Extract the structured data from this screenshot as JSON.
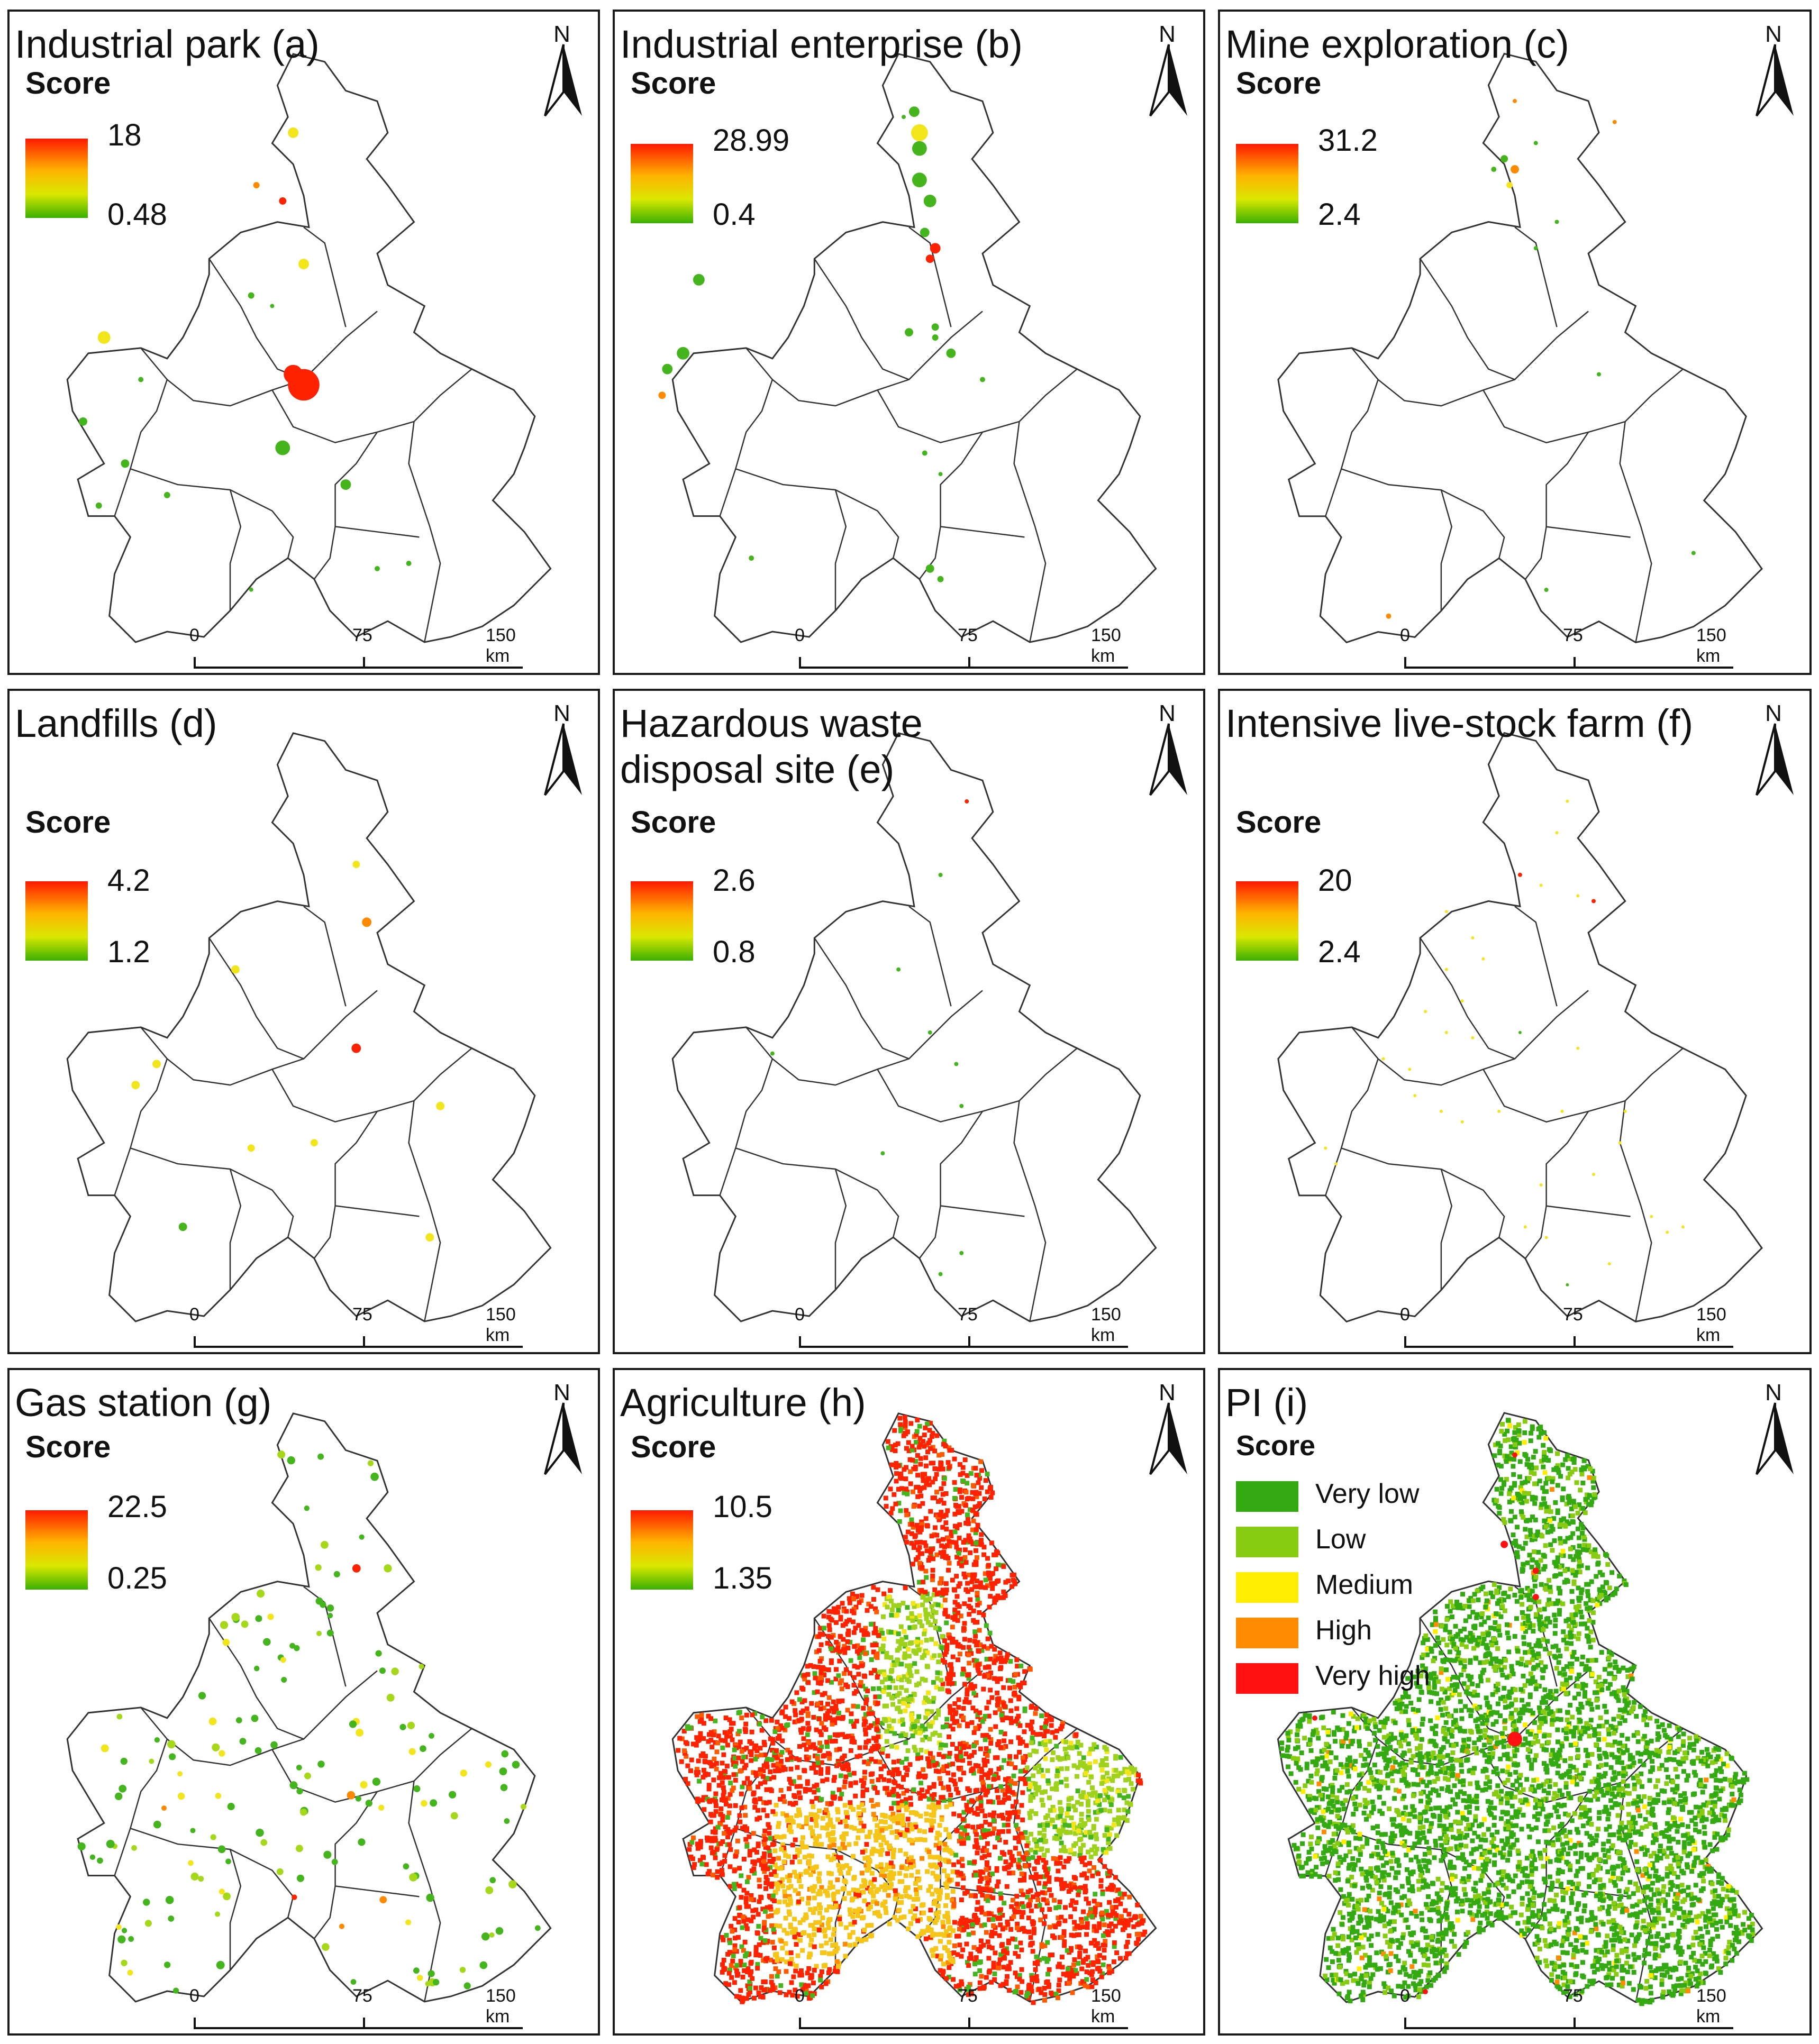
{
  "north_label": "N",
  "scale": {
    "zero": "0",
    "mid": "75",
    "end": "150 km"
  },
  "legend_title": "Score",
  "outline_color": "#333333",
  "panels": [
    {
      "title": "Industrial park (a)",
      "max": "18",
      "min": "0.48"
    },
    {
      "title": "Industrial enterprise (b)",
      "max": "28.99",
      "min": "0.4"
    },
    {
      "title": "Mine exploration (c)",
      "max": "31.2",
      "min": "2.4"
    },
    {
      "title": "Landfills (d)",
      "max": "4.2",
      "min": "1.2"
    },
    {
      "title": "Hazardous waste\n disposal site (e)",
      "max": "2.6",
      "min": "0.8"
    },
    {
      "title": "Intensive live-stock farm (f)",
      "max": "20",
      "min": "2.4"
    },
    {
      "title": "Gas station (g)",
      "max": "22.5",
      "min": "0.25"
    },
    {
      "title": "Agriculture (h)",
      "max": "10.5",
      "min": "1.35"
    },
    {
      "title": "PI (i)"
    }
  ],
  "pi_classes": [
    {
      "label": "Very low",
      "color": "#33aa11"
    },
    {
      "label": "Low",
      "color": "#88cc11"
    },
    {
      "label": "Medium",
      "color": "#ffee00"
    },
    {
      "label": "High",
      "color": "#ff8c00"
    },
    {
      "label": "Very high",
      "color": "#ff1111"
    }
  ]
}
